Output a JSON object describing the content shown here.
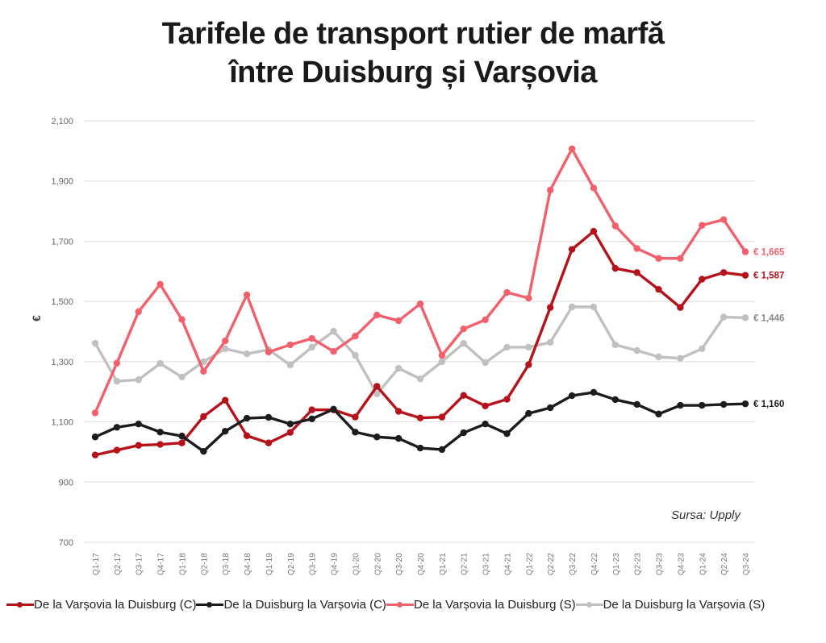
{
  "title": {
    "line1": "Tarifele de transport rutier de marfă",
    "line2": "între Duisburg și Varșovia"
  },
  "source": "Sursa: Upply",
  "chart_data": {
    "type": "line",
    "title": "Tarifele de transport rutier de marfă între Duisburg și Varșovia",
    "xlabel": "",
    "ylabel": "€",
    "ylim": [
      700,
      2100
    ],
    "yticks": [
      700,
      900,
      1100,
      1300,
      1500,
      1700,
      1900,
      2100
    ],
    "ytick_labels": [
      "700",
      "900",
      "1,100",
      "1,300",
      "1,500",
      "1,700",
      "1,900",
      "2,100"
    ],
    "grid": true,
    "legend_position": "bottom",
    "categories": [
      "Q1-17",
      "Q2-17",
      "Q3-17",
      "Q4-17",
      "Q1-18",
      "Q2-18",
      "Q3-18",
      "Q4-18",
      "Q1-19",
      "Q2-19",
      "Q3-19",
      "Q4-19",
      "Q1-20",
      "Q2-20",
      "Q3-20",
      "Q4-20",
      "Q1-21",
      "Q2-21",
      "Q3-21",
      "Q4-21",
      "Q1-22",
      "Q2-22",
      "Q3-22",
      "Q4-22",
      "Q1-23",
      "Q2-23",
      "Q3-23",
      "Q4-23",
      "Q1-24",
      "Q2-24",
      "Q3-24"
    ],
    "series": [
      {
        "name": "De la Varșovia la Duisburg (C)",
        "color": "#b5121b",
        "end_label": "€ 1,587",
        "values": [
          990,
          1006,
          1022,
          1025,
          1030,
          1118,
          1172,
          1054,
          1030,
          1065,
          1140,
          1140,
          1116,
          1218,
          1135,
          1113,
          1116,
          1188,
          1153,
          1175,
          1290,
          1480,
          1673,
          1733,
          1610,
          1596,
          1540,
          1480,
          1574,
          1596,
          1587
        ]
      },
      {
        "name": "De la Duisburg la Varșovia (C)",
        "color": "#1c1c1c",
        "end_label": "€ 1,160",
        "values": [
          1050,
          1082,
          1093,
          1066,
          1053,
          1002,
          1069,
          1112,
          1115,
          1093,
          1110,
          1142,
          1066,
          1050,
          1045,
          1013,
          1008,
          1064,
          1093,
          1061,
          1128,
          1147,
          1187,
          1198,
          1174,
          1158,
          1126,
          1155,
          1155,
          1158,
          1160
        ]
      },
      {
        "name": "De la Varșovia la Duisburg (S)",
        "color": "#f2606c",
        "end_label": "€ 1,665",
        "values": [
          1130,
          1295,
          1466,
          1557,
          1440,
          1268,
          1369,
          1522,
          1332,
          1356,
          1377,
          1334,
          1385,
          1455,
          1436,
          1492,
          1321,
          1409,
          1439,
          1530,
          1511,
          1870,
          2007,
          1877,
          1751,
          1676,
          1643,
          1643,
          1753,
          1772,
          1665
        ]
      },
      {
        "name": "De la Duisburg la Varșovia (S)",
        "color": "#c0c0c0",
        "end_label": "€ 1,446",
        "values": [
          1361,
          1235,
          1240,
          1294,
          1249,
          1300,
          1343,
          1326,
          1340,
          1289,
          1348,
          1401,
          1321,
          1193,
          1278,
          1243,
          1300,
          1361,
          1297,
          1348,
          1348,
          1364,
          1482,
          1482,
          1356,
          1337,
          1316,
          1311,
          1343,
          1448,
          1446
        ]
      }
    ]
  }
}
